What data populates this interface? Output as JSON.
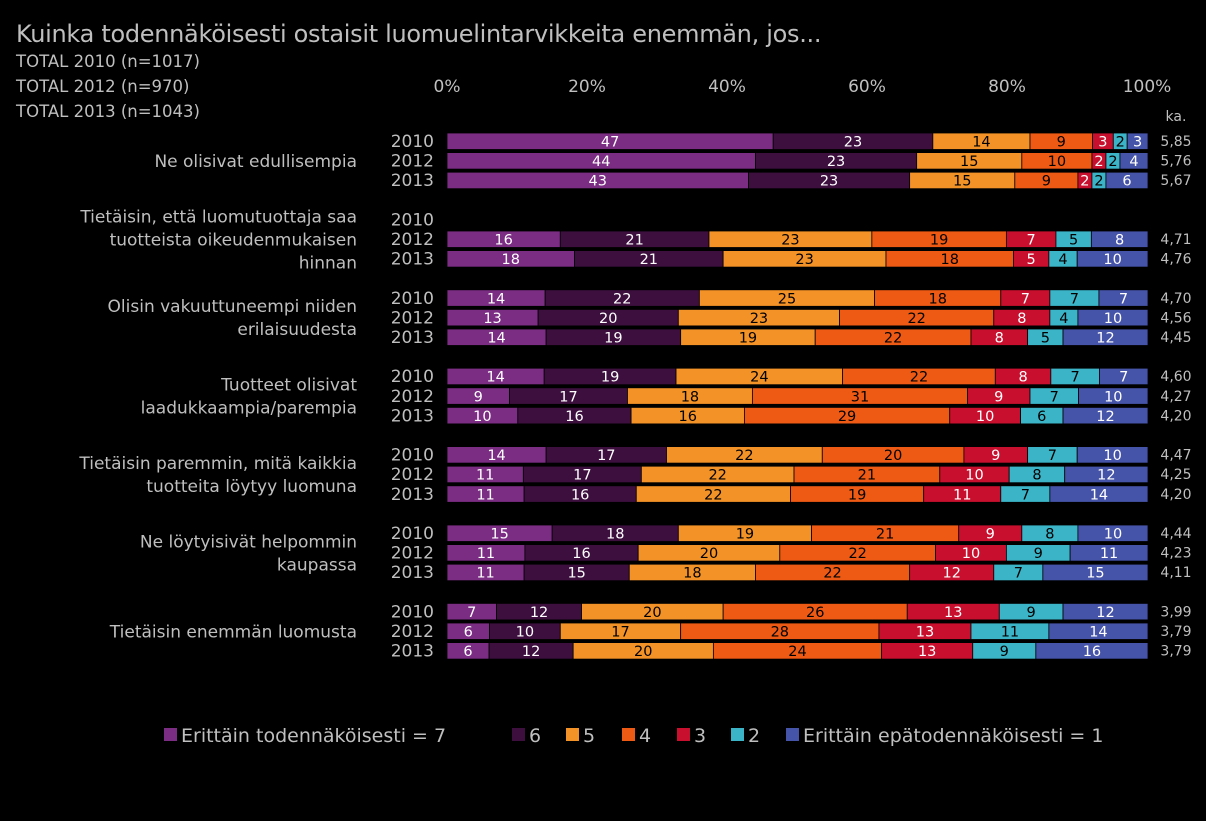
{
  "title": "Kuinka todennäköisesti ostaisit luomuelintarvikkeita enemmän, jos...",
  "subtitles": [
    "TOTAL 2010 (n=1017)",
    "TOTAL 2012 (n=970)",
    "TOTAL 2013 (n=1043)"
  ],
  "avg_label": "ka.",
  "chart_data": {
    "type": "bar",
    "orientation": "horizontal-stacked-100",
    "xlim": [
      0,
      100
    ],
    "ticks": [
      "0%",
      "20%",
      "40%",
      "60%",
      "80%",
      "100%"
    ],
    "series_names": [
      "Erittäin todennäköisesti = 7",
      "6",
      "5",
      "4",
      "3",
      "2",
      "Erittäin epätodennäköisesti = 1"
    ],
    "colors": [
      "#7b2c83",
      "#3d0f3f",
      "#f39226",
      "#ee5a13",
      "#c8102e",
      "#3ab4c6",
      "#4554a8"
    ],
    "groups": [
      {
        "label": [
          "Ne olisivat edullisempia"
        ],
        "rows": [
          {
            "year": "2010",
            "values": [
              47,
              23,
              14,
              9,
              3,
              2,
              3
            ],
            "avg": "5,85"
          },
          {
            "year": "2012",
            "values": [
              44,
              23,
              15,
              10,
              2,
              2,
              4
            ],
            "avg": "5,76"
          },
          {
            "year": "2013",
            "values": [
              43,
              23,
              15,
              9,
              2,
              2,
              6
            ],
            "avg": "5,67"
          }
        ]
      },
      {
        "label": [
          "Tietäisin, että luomutuottaja saa",
          "tuotteista oikeudenmukaisen",
          "hinnan"
        ],
        "rows": [
          {
            "year": "2010",
            "values": [],
            "avg": ""
          },
          {
            "year": "2012",
            "values": [
              16,
              21,
              23,
              19,
              7,
              5,
              8
            ],
            "avg": "4,71"
          },
          {
            "year": "2013",
            "values": [
              18,
              21,
              23,
              18,
              5,
              4,
              10
            ],
            "avg": "4,76"
          }
        ]
      },
      {
        "label": [
          "Olisin vakuuttuneempi niiden",
          "erilaisuudesta"
        ],
        "rows": [
          {
            "year": "2010",
            "values": [
              14,
              22,
              25,
              18,
              7,
              7,
              7
            ],
            "avg": "4,70"
          },
          {
            "year": "2012",
            "values": [
              13,
              20,
              23,
              22,
              8,
              4,
              10
            ],
            "avg": "4,56"
          },
          {
            "year": "2013",
            "values": [
              14,
              19,
              19,
              22,
              8,
              5,
              12
            ],
            "avg": "4,45"
          }
        ]
      },
      {
        "label": [
          "Tuotteet olisivat",
          "laadukkaampia/parempia"
        ],
        "rows": [
          {
            "year": "2010",
            "values": [
              14,
              19,
              24,
              22,
              8,
              7,
              7
            ],
            "avg": "4,60"
          },
          {
            "year": "2012",
            "values": [
              9,
              17,
              18,
              31,
              9,
              7,
              10
            ],
            "avg": "4,27"
          },
          {
            "year": "2013",
            "values": [
              10,
              16,
              16,
              29,
              10,
              6,
              12
            ],
            "avg": "4,20"
          }
        ]
      },
      {
        "label": [
          "Tietäisin paremmin, mitä kaikkia",
          "tuotteita löytyy luomuna"
        ],
        "rows": [
          {
            "year": "2010",
            "values": [
              14,
              17,
              22,
              20,
              9,
              7,
              10
            ],
            "avg": "4,47"
          },
          {
            "year": "2012",
            "values": [
              11,
              17,
              22,
              21,
              10,
              8,
              12
            ],
            "avg": "4,25"
          },
          {
            "year": "2013",
            "values": [
              11,
              16,
              22,
              19,
              11,
              7,
              14
            ],
            "avg": "4,20"
          }
        ]
      },
      {
        "label": [
          "Ne löytyisivät helpommin",
          "kaupassa"
        ],
        "rows": [
          {
            "year": "2010",
            "values": [
              15,
              18,
              19,
              21,
              9,
              8,
              10
            ],
            "avg": "4,44"
          },
          {
            "year": "2012",
            "values": [
              11,
              16,
              20,
              22,
              10,
              9,
              11
            ],
            "avg": "4,23"
          },
          {
            "year": "2013",
            "values": [
              11,
              15,
              18,
              22,
              12,
              7,
              15
            ],
            "avg": "4,11"
          }
        ]
      },
      {
        "label": [
          "Tietäisin enemmän luomusta"
        ],
        "rows": [
          {
            "year": "2010",
            "values": [
              7,
              12,
              20,
              26,
              13,
              9,
              12
            ],
            "avg": "3,99"
          },
          {
            "year": "2012",
            "values": [
              6,
              10,
              17,
              28,
              13,
              11,
              14
            ],
            "avg": "3,79"
          },
          {
            "year": "2013",
            "values": [
              6,
              12,
              20,
              24,
              13,
              9,
              16
            ],
            "avg": "3,79"
          }
        ]
      }
    ]
  }
}
